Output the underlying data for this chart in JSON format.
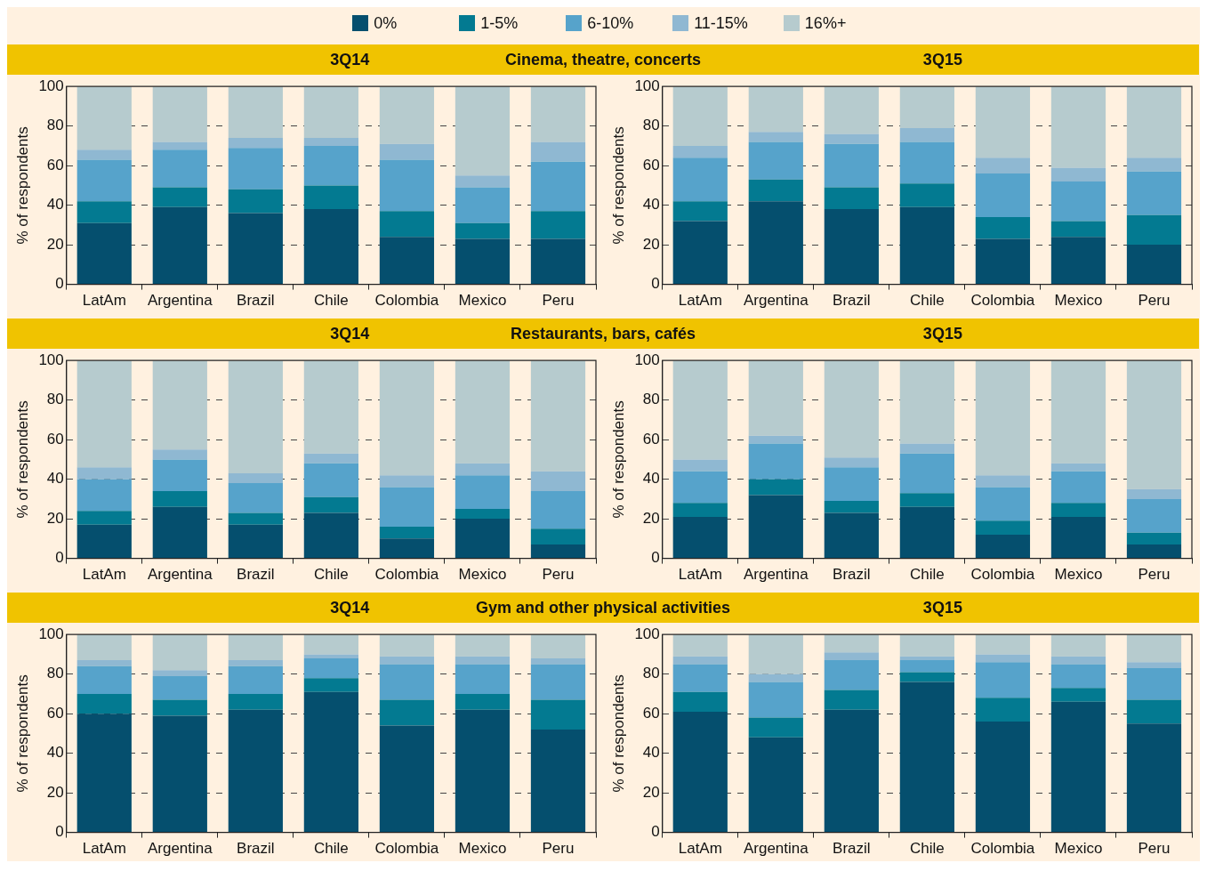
{
  "chart_data": [
    {
      "type": "bar",
      "title": "3Q14",
      "subtitle": "Cinema, theatre, concerts",
      "ylabel": "% of respondents",
      "categories": [
        "LatAm",
        "Argentina",
        "Brazil",
        "Chile",
        "Colombia",
        "Mexico",
        "Peru"
      ],
      "stacked": true,
      "ylim": [
        0,
        100
      ],
      "yticks": [
        0,
        20,
        40,
        60,
        80,
        100
      ],
      "grid": "y",
      "legend": "top",
      "series": [
        {
          "name": "0%",
          "color": "#054f6e",
          "values": [
            31,
            39,
            36,
            38,
            24,
            23,
            23
          ]
        },
        {
          "name": "1-5%",
          "color": "#037a91",
          "values": [
            11,
            10,
            12,
            12,
            13,
            8,
            14
          ]
        },
        {
          "name": "6-10%",
          "color": "#56a3cb",
          "values": [
            21,
            19,
            21,
            20,
            26,
            18,
            25
          ]
        },
        {
          "name": "11-15%",
          "color": "#8fb8d2",
          "values": [
            5,
            4,
            5,
            4,
            8,
            6,
            10
          ]
        },
        {
          "name": "16%+",
          "color": "#b6cbce",
          "values": [
            32,
            28,
            26,
            26,
            29,
            45,
            28
          ]
        }
      ]
    },
    {
      "type": "bar",
      "title": "3Q15",
      "ylabel": "% of respondents",
      "categories": [
        "LatAm",
        "Argentina",
        "Brazil",
        "Chile",
        "Colombia",
        "Mexico",
        "Peru"
      ],
      "stacked": true,
      "ylim": [
        0,
        100
      ],
      "yticks": [
        0,
        20,
        40,
        60,
        80,
        100
      ],
      "grid": "y",
      "series": [
        {
          "color": "#054f6e",
          "values": [
            32,
            42,
            38,
            39,
            23,
            24,
            20
          ]
        },
        {
          "color": "#037a91",
          "values": [
            10,
            11,
            11,
            12,
            11,
            8,
            15
          ]
        },
        {
          "color": "#56a3cb",
          "values": [
            22,
            19,
            22,
            21,
            22,
            20,
            22
          ]
        },
        {
          "color": "#8fb8d2",
          "values": [
            6,
            5,
            5,
            7,
            8,
            7,
            7
          ]
        },
        {
          "color": "#b6cbce",
          "values": [
            30,
            23,
            24,
            21,
            36,
            41,
            36
          ]
        }
      ]
    },
    {
      "type": "bar",
      "title": "3Q14",
      "subtitle": "Restaurants, bars, cafés",
      "ylabel": "% of respondents",
      "categories": [
        "LatAm",
        "Argentina",
        "Brazil",
        "Chile",
        "Colombia",
        "Mexico",
        "Peru"
      ],
      "stacked": true,
      "ylim": [
        0,
        100
      ],
      "yticks": [
        0,
        20,
        40,
        60,
        80,
        100
      ],
      "grid": "y",
      "series": [
        {
          "color": "#054f6e",
          "values": [
            17,
            26,
            17,
            23,
            10,
            20,
            7
          ]
        },
        {
          "color": "#037a91",
          "values": [
            7,
            8,
            6,
            8,
            6,
            5,
            8
          ]
        },
        {
          "color": "#56a3cb",
          "values": [
            16,
            16,
            15,
            17,
            20,
            17,
            19
          ]
        },
        {
          "color": "#8fb8d2",
          "values": [
            6,
            5,
            5,
            5,
            6,
            6,
            10
          ]
        },
        {
          "color": "#b6cbce",
          "values": [
            54,
            45,
            57,
            47,
            58,
            52,
            56
          ]
        }
      ]
    },
    {
      "type": "bar",
      "title": "3Q15",
      "ylabel": "% of respondents",
      "categories": [
        "LatAm",
        "Argentina",
        "Brazil",
        "Chile",
        "Colombia",
        "Mexico",
        "Peru"
      ],
      "stacked": true,
      "ylim": [
        0,
        100
      ],
      "yticks": [
        0,
        20,
        40,
        60,
        80,
        100
      ],
      "grid": "y",
      "series": [
        {
          "color": "#054f6e",
          "values": [
            21,
            32,
            23,
            26,
            12,
            21,
            7
          ]
        },
        {
          "color": "#037a91",
          "values": [
            7,
            8,
            6,
            7,
            7,
            7,
            6
          ]
        },
        {
          "color": "#56a3cb",
          "values": [
            16,
            18,
            17,
            20,
            17,
            16,
            17
          ]
        },
        {
          "color": "#8fb8d2",
          "values": [
            6,
            4,
            5,
            5,
            6,
            4,
            5
          ]
        },
        {
          "color": "#b6cbce",
          "values": [
            50,
            38,
            49,
            42,
            58,
            52,
            65
          ]
        }
      ]
    },
    {
      "type": "bar",
      "title": "3Q14",
      "subtitle": "Gym and other physical activities",
      "ylabel": "% of respondents",
      "categories": [
        "LatAm",
        "Argentina",
        "Brazil",
        "Chile",
        "Colombia",
        "Mexico",
        "Peru"
      ],
      "stacked": true,
      "ylim": [
        0,
        100
      ],
      "yticks": [
        0,
        20,
        40,
        60,
        80,
        100
      ],
      "grid": "y",
      "series": [
        {
          "color": "#054f6e",
          "values": [
            60,
            59,
            62,
            71,
            54,
            62,
            52
          ]
        },
        {
          "color": "#037a91",
          "values": [
            10,
            8,
            8,
            7,
            13,
            8,
            15
          ]
        },
        {
          "color": "#56a3cb",
          "values": [
            14,
            12,
            14,
            10,
            18,
            15,
            18
          ]
        },
        {
          "color": "#8fb8d2",
          "values": [
            3,
            3,
            3,
            2,
            4,
            4,
            3
          ]
        },
        {
          "color": "#b6cbce",
          "values": [
            13,
            18,
            13,
            10,
            11,
            11,
            12
          ]
        }
      ]
    },
    {
      "type": "bar",
      "title": "3Q15",
      "ylabel": "% of respondents",
      "categories": [
        "LatAm",
        "Argentina",
        "Brazil",
        "Chile",
        "Colombia",
        "Mexico",
        "Peru"
      ],
      "stacked": true,
      "ylim": [
        0,
        100
      ],
      "yticks": [
        0,
        20,
        40,
        60,
        80,
        100
      ],
      "grid": "y",
      "series": [
        {
          "color": "#054f6e",
          "values": [
            61,
            48,
            62,
            76,
            56,
            66,
            55
          ]
        },
        {
          "color": "#037a91",
          "values": [
            10,
            10,
            10,
            5,
            12,
            7,
            12
          ]
        },
        {
          "color": "#56a3cb",
          "values": [
            14,
            18,
            15,
            6,
            18,
            12,
            16
          ]
        },
        {
          "color": "#8fb8d2",
          "values": [
            4,
            4,
            4,
            2,
            4,
            4,
            3
          ]
        },
        {
          "color": "#b6cbce",
          "values": [
            11,
            20,
            9,
            11,
            10,
            11,
            14
          ]
        }
      ]
    }
  ]
}
